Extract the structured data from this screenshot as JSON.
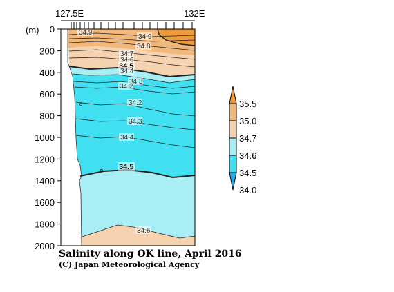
{
  "chart_data": {
    "type": "heatmap",
    "title": "Salinity along OK line, April 2016",
    "credit": "(C) Japan Meteorological Agency",
    "x_range_labels": [
      "127.5E",
      "132E"
    ],
    "y_unit": "(m)",
    "y_ticks": [
      "0",
      "200",
      "400",
      "600",
      "800",
      "1000",
      "1200",
      "1400",
      "1600",
      "1800",
      "2000"
    ],
    "y_range": [
      0,
      2000
    ],
    "colorbar_levels": [
      "34.0",
      "34.5",
      "34.6",
      "34.7",
      "35.0",
      "35.5"
    ],
    "colorbar_colors": [
      "#27a8e6",
      "#40e0f0",
      "#a8eef4",
      "#f5d2b0",
      "#f1b87c",
      "#ec9b3c"
    ],
    "contour_labels": [
      {
        "text": "34.9",
        "bold": false
      },
      {
        "text": "34.9",
        "bold": false
      },
      {
        "text": "34.8",
        "bold": false
      },
      {
        "text": "34.7",
        "bold": false
      },
      {
        "text": "34.6",
        "bold": false
      },
      {
        "text": "34.5",
        "bold": true
      },
      {
        "text": "34.4",
        "bold": false
      },
      {
        "text": "34.3",
        "bold": false
      },
      {
        "text": "34.2",
        "bold": false
      },
      {
        "text": "34.2",
        "bold": false
      },
      {
        "text": "34.3",
        "bold": false
      },
      {
        "text": "34.4",
        "bold": false
      },
      {
        "text": "34.5",
        "bold": true
      },
      {
        "text": "34.6",
        "bold": false
      }
    ]
  }
}
